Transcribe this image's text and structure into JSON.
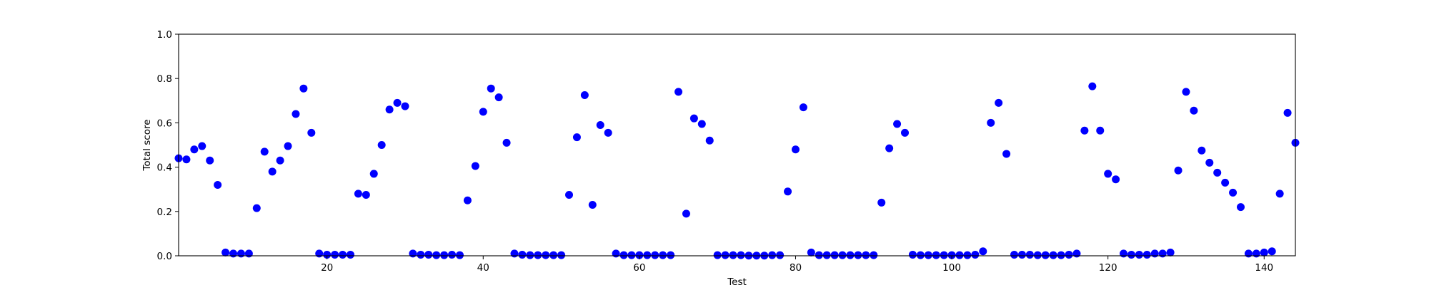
{
  "chart_data": {
    "type": "scatter",
    "title": "",
    "xlabel": "Test",
    "ylabel": "Total score",
    "xlim": [
      1,
      144
    ],
    "ylim": [
      0.0,
      1.0
    ],
    "xticks": [
      20,
      40,
      60,
      80,
      100,
      120,
      140
    ],
    "yticks": [
      0.0,
      0.2,
      0.4,
      0.6,
      0.8,
      1.0
    ],
    "xtick_labels": [
      "20",
      "40",
      "60",
      "80",
      "100",
      "120",
      "140"
    ],
    "ytick_labels": [
      "0.0",
      "0.2",
      "0.4",
      "0.6",
      "0.8",
      "1.0"
    ],
    "grid": false,
    "marker_color": "#0000ff",
    "x": [
      1,
      2,
      3,
      4,
      5,
      6,
      7,
      8,
      9,
      10,
      11,
      12,
      13,
      14,
      15,
      16,
      17,
      18,
      19,
      20,
      21,
      22,
      23,
      24,
      25,
      26,
      27,
      28,
      29,
      30,
      31,
      32,
      33,
      34,
      35,
      36,
      37,
      38,
      39,
      40,
      41,
      42,
      43,
      44,
      45,
      46,
      47,
      48,
      49,
      50,
      51,
      52,
      53,
      54,
      55,
      56,
      57,
      58,
      59,
      60,
      61,
      62,
      63,
      64,
      65,
      66,
      67,
      68,
      69,
      70,
      71,
      72,
      73,
      74,
      75,
      76,
      77,
      78,
      79,
      80,
      81,
      82,
      83,
      84,
      85,
      86,
      87,
      88,
      89,
      90,
      91,
      92,
      93,
      94,
      95,
      96,
      97,
      98,
      99,
      100,
      101,
      102,
      103,
      104,
      105,
      106,
      107,
      108,
      109,
      110,
      111,
      112,
      113,
      114,
      115,
      116,
      117,
      118,
      119,
      120,
      121,
      122,
      123,
      124,
      125,
      126,
      127,
      128,
      129,
      130,
      131,
      132,
      133,
      134,
      135,
      136,
      137,
      138,
      139,
      140,
      141,
      142,
      143,
      144
    ],
    "y": [
      0.44,
      0.435,
      0.48,
      0.495,
      0.43,
      0.32,
      0.015,
      0.01,
      0.01,
      0.01,
      0.215,
      0.47,
      0.38,
      0.43,
      0.495,
      0.64,
      0.755,
      0.555,
      0.01,
      0.005,
      0.005,
      0.005,
      0.005,
      0.28,
      0.275,
      0.37,
      0.5,
      0.66,
      0.69,
      0.675,
      0.01,
      0.005,
      0.005,
      0.003,
      0.003,
      0.005,
      0.003,
      0.25,
      0.405,
      0.65,
      0.755,
      0.715,
      0.51,
      0.01,
      0.005,
      0.003,
      0.003,
      0.003,
      0.003,
      0.003,
      0.275,
      0.535,
      0.725,
      0.23,
      0.59,
      0.555,
      0.01,
      0.003,
      0.003,
      0.003,
      0.003,
      0.003,
      0.003,
      0.003,
      0.74,
      0.19,
      0.62,
      0.595,
      0.52,
      0.003,
      0.003,
      0.003,
      0.003,
      0.001,
      0.001,
      0.001,
      0.003,
      0.003,
      0.29,
      0.48,
      0.67,
      0.015,
      0.003,
      0.003,
      0.003,
      0.003,
      0.003,
      0.003,
      0.003,
      0.003,
      0.24,
      0.485,
      0.595,
      0.555,
      0.005,
      0.003,
      0.003,
      0.003,
      0.003,
      0.003,
      0.003,
      0.003,
      0.005,
      0.02,
      0.6,
      0.69,
      0.46,
      0.005,
      0.005,
      0.005,
      0.003,
      0.003,
      0.003,
      0.003,
      0.005,
      0.01,
      0.565,
      0.765,
      0.565,
      0.37,
      0.345,
      0.01,
      0.005,
      0.005,
      0.005,
      0.01,
      0.01,
      0.015,
      0.385,
      0.74,
      0.655,
      0.475,
      0.42,
      0.375,
      0.33,
      0.285,
      0.22,
      0.01,
      0.01,
      0.015,
      0.02,
      0.28,
      0.645,
      0.51
    ]
  }
}
